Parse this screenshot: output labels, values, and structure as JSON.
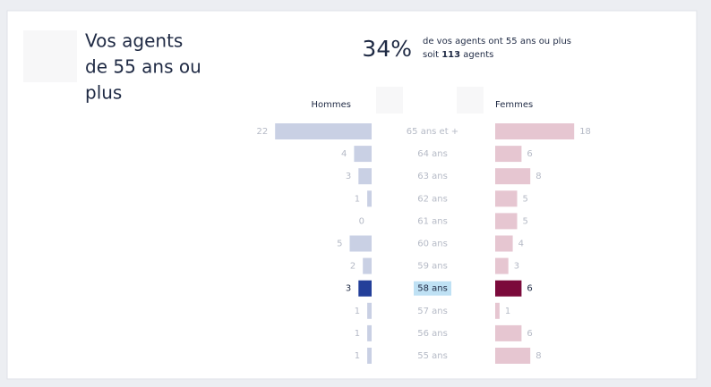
{
  "chart_data": {
    "type": "pyramid",
    "title_lines": [
      "Vos agents",
      "de 55 ans ou",
      "plus"
    ],
    "kpi": "34%",
    "kpi_text": "de vos agents ont 55 ans ou plus",
    "kpi_sub_prefix": "soit",
    "kpi_sub_count": "113",
    "kpi_sub_suffix": "agents",
    "categories": [
      "65 ans et +",
      "64 ans",
      "63 ans",
      "62 ans",
      "61 ans",
      "60 ans",
      "59 ans",
      "58 ans",
      "57 ans",
      "56 ans",
      "55 ans"
    ],
    "highlight_category": "58 ans",
    "series": [
      {
        "name": "Hommes",
        "color": "#c9d0e4",
        "highlight_color": "#233f99",
        "values": [
          22,
          4,
          3,
          1,
          0,
          5,
          2,
          3,
          1,
          1,
          1
        ]
      },
      {
        "name": "Femmes",
        "color": "#e6c6d1",
        "highlight_color": "#7b0a3b",
        "values": [
          18,
          6,
          8,
          5,
          5,
          4,
          3,
          6,
          1,
          6,
          8
        ]
      }
    ]
  }
}
